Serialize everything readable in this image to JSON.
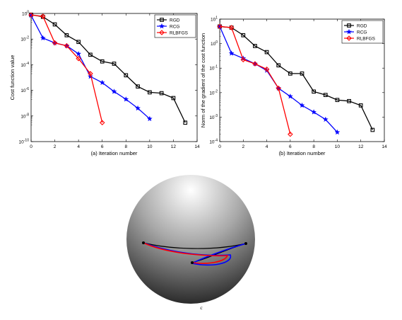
{
  "colors": {
    "RGD": "#000000",
    "RCG": "#0000ff",
    "RLBFGS": "#ff0000"
  },
  "chart_data": [
    {
      "type": "line",
      "ylabel": "Cost function value",
      "xlabel": "(a) Iteration number",
      "y_scale": "log",
      "xlim": [
        0,
        14
      ],
      "ylim_exp": [
        -10,
        0
      ],
      "x_ticks": [
        "0",
        "2",
        "4",
        "6",
        "8",
        "10",
        "12",
        "14"
      ],
      "y_ticks": [
        {
          "base": "10",
          "exp": "0"
        },
        {
          "base": "10",
          "exp": "-2"
        },
        {
          "base": "10",
          "exp": "-4"
        },
        {
          "base": "10",
          "exp": "-6"
        },
        {
          "base": "10",
          "exp": "-8"
        },
        {
          "base": "10",
          "exp": "-10"
        }
      ],
      "legend_position": "top-right",
      "series": [
        {
          "name": "RGD",
          "marker": "square",
          "color": "#000000",
          "x": [
            0,
            1,
            2,
            3,
            4,
            5,
            6,
            7,
            8,
            9,
            10,
            11,
            12,
            13
          ],
          "y": [
            0.8,
            0.55,
            0.14,
            0.02,
            0.006,
            0.0006,
            0.00018,
            0.00012,
            1.5e-05,
            2e-06,
            7e-07,
            6e-07,
            2.5e-07,
            3e-09
          ]
        },
        {
          "name": "RCG",
          "marker": "star",
          "color": "#0000ff",
          "x": [
            0,
            1,
            2,
            3,
            4,
            5,
            6,
            7,
            8,
            9,
            10
          ],
          "y": [
            0.7,
            0.012,
            0.005,
            0.003,
            0.0007,
            1.2e-05,
            4e-06,
            8e-07,
            2e-07,
            4e-08,
            6e-09
          ]
        },
        {
          "name": "RLBFGS",
          "marker": "diamond",
          "color": "#ff0000",
          "x": [
            0,
            1,
            2,
            3,
            4,
            5,
            6
          ],
          "y": [
            0.75,
            0.6,
            0.005,
            0.003,
            0.0003,
            2e-05,
            3e-09
          ]
        }
      ]
    },
    {
      "type": "line",
      "ylabel": "Norm of the gradient of the cost function",
      "xlabel": "(b) Iteration number",
      "y_scale": "log",
      "xlim": [
        0,
        14
      ],
      "ylim_exp": [
        -4,
        1
      ],
      "x_ticks": [
        "0",
        "2",
        "4",
        "6",
        "8",
        "10",
        "12",
        "14"
      ],
      "y_ticks": [
        {
          "base": "10",
          "exp": "1"
        },
        {
          "base": "10",
          "exp": "0"
        },
        {
          "base": "10",
          "exp": "-1"
        },
        {
          "base": "10",
          "exp": "-2"
        },
        {
          "base": "10",
          "exp": "-3"
        },
        {
          "base": "10",
          "exp": "-4"
        }
      ],
      "legend_position": "top-right",
      "series": [
        {
          "name": "RGD",
          "marker": "square",
          "color": "#000000",
          "x": [
            0,
            1,
            2,
            3,
            4,
            5,
            6,
            7,
            8,
            9,
            10,
            11,
            12,
            13
          ],
          "y": [
            5,
            4.5,
            2.2,
            0.8,
            0.45,
            0.13,
            0.06,
            0.06,
            0.011,
            0.008,
            0.005,
            0.0045,
            0.003,
            0.0003
          ]
        },
        {
          "name": "RCG",
          "marker": "star",
          "color": "#0000ff",
          "x": [
            0,
            1,
            2,
            3,
            4,
            5,
            6,
            7,
            8,
            9,
            10
          ],
          "y": [
            5,
            0.4,
            0.25,
            0.15,
            0.08,
            0.015,
            0.007,
            0.003,
            0.0016,
            0.0008,
            0.00024
          ]
        },
        {
          "name": "RLBFGS",
          "marker": "diamond",
          "color": "#ff0000",
          "x": [
            0,
            1,
            2,
            3,
            4,
            5,
            6
          ],
          "y": [
            5,
            4.5,
            0.22,
            0.15,
            0.09,
            0.015,
            0.0002
          ]
        }
      ]
    }
  ],
  "caption_c": "c"
}
